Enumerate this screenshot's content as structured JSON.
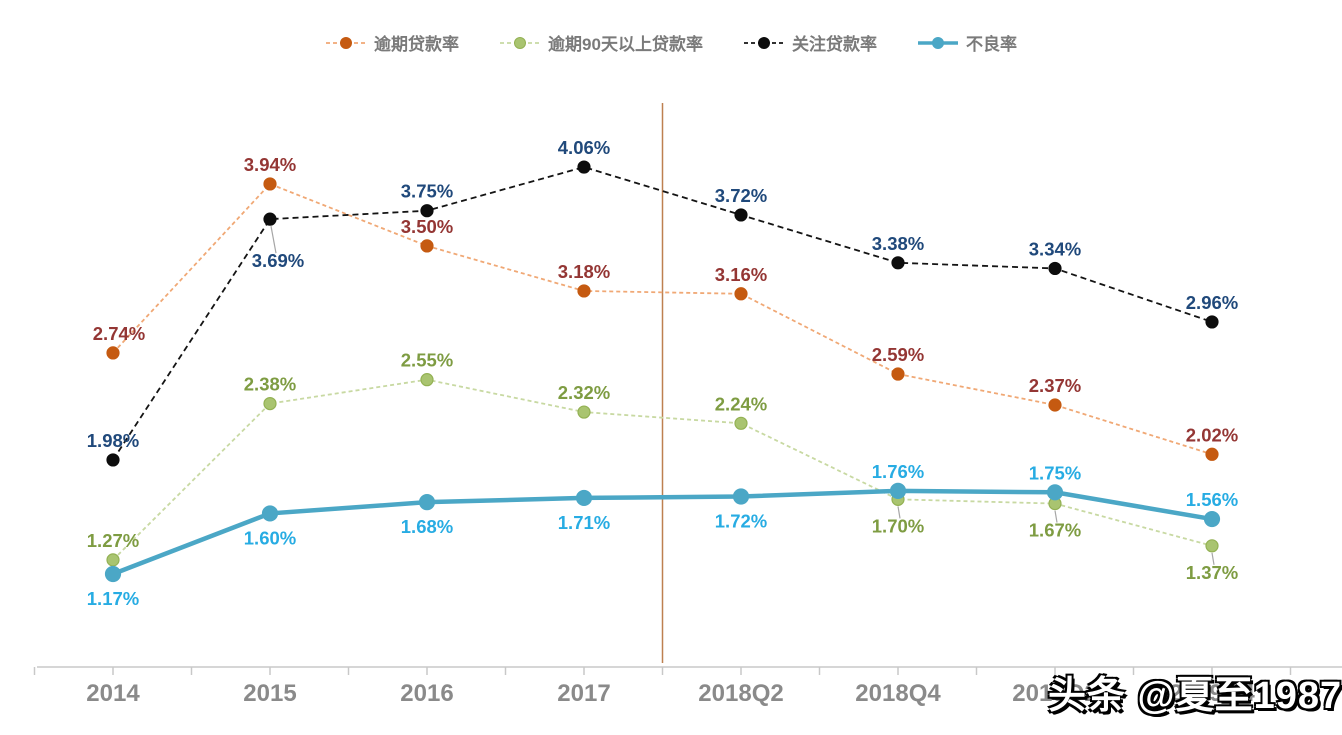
{
  "chart_data": {
    "type": "line",
    "categories": [
      "2014",
      "2015",
      "2016",
      "2017",
      "2018Q2",
      "2018Q4",
      "2019Q2",
      "2019Q4"
    ],
    "series": [
      {
        "name": "逾期贷款率",
        "values": [
          2.74,
          3.94,
          3.5,
          3.18,
          3.16,
          2.59,
          2.37,
          2.02
        ],
        "line_color": "#f0a875",
        "dot_color": "#c55a11",
        "dot_stroke": "#c55a11",
        "label_color": "#943634",
        "dashed": true,
        "line_width": 1.8,
        "dot_radius": 6,
        "label_side": [
          "above",
          "above",
          "above",
          "above",
          "above",
          "above",
          "above",
          "above"
        ],
        "label_dx": [
          6,
          0,
          0,
          0,
          0,
          0,
          0,
          0
        ]
      },
      {
        "name": "逾期90天以上贷款率",
        "values": [
          1.27,
          2.38,
          2.55,
          2.32,
          2.24,
          1.7,
          1.67,
          1.37
        ],
        "line_color": "#c8d9a2",
        "dot_color": "#a9c470",
        "dot_stroke": "#93b153",
        "label_color": "#7e9c42",
        "dashed": true,
        "line_width": 1.8,
        "dot_radius": 6,
        "label_side": [
          "above",
          "above",
          "above",
          "above",
          "above",
          "below_leader",
          "below_leader",
          "below_leader"
        ],
        "label_dx": [
          0,
          0,
          0,
          0,
          0,
          0,
          0,
          0
        ]
      },
      {
        "name": "关注贷款率",
        "values": [
          1.98,
          3.69,
          3.75,
          4.06,
          3.72,
          3.38,
          3.34,
          2.96
        ],
        "line_color": "#141414",
        "dot_color": "#0d0d0d",
        "dot_stroke": "#0d0d0d",
        "label_color": "#20497b",
        "dashed": true,
        "line_width": 1.8,
        "dot_radius": 6,
        "label_side": [
          "above",
          "belowfar_leader",
          "above",
          "above",
          "above",
          "above",
          "above",
          "above"
        ],
        "label_dx": [
          0,
          8,
          0,
          0,
          0,
          0,
          0,
          0
        ]
      },
      {
        "name": "不良率",
        "values": [
          1.17,
          1.6,
          1.68,
          1.71,
          1.72,
          1.76,
          1.75,
          1.56
        ],
        "line_color": "#4ba7c6",
        "dot_color": "#4ba7c6",
        "dot_stroke": "#4ba7c6",
        "label_color": "#27ace3",
        "dashed": false,
        "line_width": 4.5,
        "dot_radius": 7.5,
        "label_side": [
          "below",
          "below",
          "below",
          "below",
          "below",
          "above",
          "above",
          "above"
        ],
        "label_dx": [
          0,
          0,
          0,
          0,
          0,
          0,
          0,
          0
        ]
      }
    ],
    "value_label_suffix": "%",
    "divider": {
      "between": [
        "2017",
        "2018Q2"
      ],
      "color": "#be8050"
    },
    "axis": {
      "line_color": "#c8c8c8",
      "tick_color": "#c8c8c8",
      "label_color": "#8a8a8a"
    },
    "leader_color": "#a6a6a6",
    "legend_position": "top",
    "grid": false,
    "ylim_implied": [
      1.0,
      4.3
    ]
  },
  "watermark": {
    "text": "头条 @夏至1987"
  }
}
